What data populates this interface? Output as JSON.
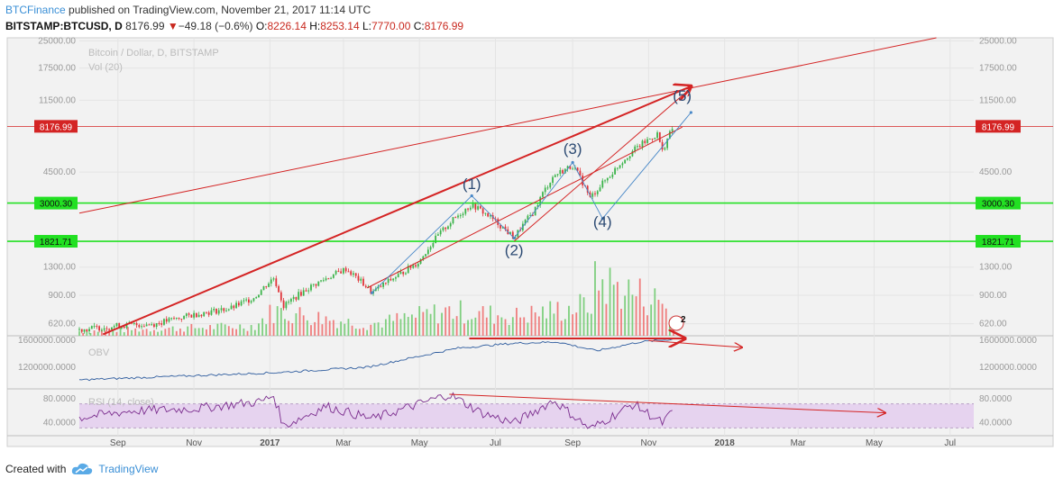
{
  "header": {
    "author": "BTCFinance",
    "published_text": " published on TradingView.com, November 21, 2017 11:14 UTC",
    "symbol": "BITSTAMP:BTCUSD, D",
    "last": "8176.99",
    "change_arrow": "▼",
    "change": "−49.18 (−0.6%)",
    "o_label": "O:",
    "o_value": "8226.14",
    "h_label": "H:",
    "h_value": "8253.14",
    "l_label": "L:",
    "l_value": "7770.00",
    "c_label": "C:",
    "c_value": "8176.99"
  },
  "footer": {
    "created_with": "Created with",
    "brand": "TradingView"
  },
  "colors": {
    "up": "#3cb44b",
    "down": "#e0343a",
    "trend": "#d42424",
    "support": "#22e022",
    "obv": "#2e5c9e",
    "rsi": "#7b2d8e",
    "rsi_band": "#e6d3ef",
    "wave": "#4a89c8"
  },
  "chart_data": {
    "type": "candlestick",
    "main": {
      "title": "Bitcoin / Dollar, D, BITSTAMP",
      "subtitle": "Vol (20)",
      "scale": "log",
      "ylim": [
        530,
        26000
      ],
      "xlim": [
        "2016-08-01",
        "2018-07-20"
      ],
      "y_tick_labels": [
        "25000.00",
        "17500.00",
        "11500.00",
        "4500.00",
        "1300.00",
        "900.00",
        "620.00"
      ],
      "price_levels": [
        {
          "label": "8176.99",
          "value": 8176.99,
          "color": "#d42424"
        },
        {
          "label": "3000.30",
          "value": 3000.3,
          "color": "#22e022"
        },
        {
          "label": "1821.71",
          "value": 1821.71,
          "color": "#22e022"
        }
      ],
      "price_path": [
        [
          "2016-08-01",
          575
        ],
        [
          "2016-09-01",
          605
        ],
        [
          "2016-10-01",
          620
        ],
        [
          "2016-11-01",
          700
        ],
        [
          "2016-12-01",
          760
        ],
        [
          "2016-12-20",
          880
        ],
        [
          "2017-01-04",
          1130
        ],
        [
          "2017-01-12",
          780
        ],
        [
          "2017-02-01",
          990
        ],
        [
          "2017-03-03",
          1270
        ],
        [
          "2017-03-24",
          930
        ],
        [
          "2017-04-15",
          1180
        ],
        [
          "2017-05-01",
          1400
        ],
        [
          "2017-05-25",
          2300
        ],
        [
          "2017-06-12",
          2950
        ],
        [
          "2017-06-25",
          2550
        ],
        [
          "2017-07-16",
          1900
        ],
        [
          "2017-08-01",
          2700
        ],
        [
          "2017-08-17",
          4300
        ],
        [
          "2017-09-01",
          4900
        ],
        [
          "2017-09-15",
          3200
        ],
        [
          "2017-10-01",
          4300
        ],
        [
          "2017-10-20",
          6000
        ],
        [
          "2017-11-08",
          7400
        ],
        [
          "2017-11-12",
          5900
        ],
        [
          "2017-11-21",
          8176.99
        ]
      ],
      "volume_path": [
        [
          "2016-08-01",
          0.08
        ],
        [
          "2016-12-20",
          0.18
        ],
        [
          "2017-01-04",
          0.45
        ],
        [
          "2017-03-20",
          0.2
        ],
        [
          "2017-05-25",
          0.45
        ],
        [
          "2017-07-16",
          0.35
        ],
        [
          "2017-09-15",
          0.55
        ],
        [
          "2017-09-20",
          1.0
        ],
        [
          "2017-11-12",
          0.6
        ],
        [
          "2017-11-21",
          0.3
        ]
      ],
      "wave_labels": [
        {
          "label": "(1)",
          "date": "2017-06-12",
          "price": 3600
        },
        {
          "label": "(2)",
          "date": "2017-07-16",
          "price": 1520
        },
        {
          "label": "(3)",
          "date": "2017-09-01",
          "price": 5700
        },
        {
          "label": "(4)",
          "date": "2017-09-25",
          "price": 2200
        },
        {
          "label": "(5)",
          "date": "2017-11-28",
          "price": 11400
        }
      ],
      "wave_path": [
        [
          "2017-03-24",
          930
        ],
        [
          "2017-06-12",
          3300
        ],
        [
          "2017-07-16",
          1900
        ],
        [
          "2017-09-01",
          5100
        ],
        [
          "2017-09-25",
          2450
        ],
        [
          "2017-12-05",
          9800
        ]
      ],
      "trend_lines": [
        {
          "from": [
            "2016-08-01",
            2630
          ],
          "to": [
            "2018-06-20",
            26000
          ],
          "width": 1,
          "arrow": false
        },
        {
          "from": [
            "2016-08-20",
            540
          ],
          "to": [
            "2017-12-05",
            13800
          ],
          "width": 2,
          "arrow": true
        },
        {
          "from": [
            "2017-03-20",
            990
          ],
          "to": [
            "2017-11-28",
            8100
          ],
          "width": 1,
          "arrow": false
        },
        {
          "from": [
            "2017-07-16",
            1821.71
          ],
          "to": [
            "2017-12-05",
            13500
          ],
          "width": 1,
          "arrow": true
        }
      ]
    },
    "obv": {
      "title": "OBV",
      "y_tick_labels": [
        "1600000.0000",
        "1200000.0000"
      ],
      "ylim": [
        900000,
        1650000
      ],
      "path": [
        [
          "2016-08-01",
          1005000
        ],
        [
          "2017-01-04",
          1110000
        ],
        [
          "2017-03-20",
          1190000
        ],
        [
          "2017-06-01",
          1470000
        ],
        [
          "2017-07-16",
          1540000
        ],
        [
          "2017-08-20",
          1560000
        ],
        [
          "2017-09-20",
          1430000
        ],
        [
          "2017-10-25",
          1560000
        ],
        [
          "2017-11-21",
          1600000
        ]
      ]
    },
    "rsi": {
      "title": "RSI (14, close)",
      "y_tick_labels": [
        "80.0000",
        "40.0000"
      ],
      "ylim": [
        20,
        95
      ],
      "band": [
        30,
        70
      ],
      "path": [
        [
          "2016-08-01",
          47
        ],
        [
          "2016-09-10",
          58
        ],
        [
          "2016-11-01",
          62
        ],
        [
          "2016-12-25",
          74
        ],
        [
          "2017-01-04",
          84
        ],
        [
          "2017-01-12",
          33
        ],
        [
          "2017-02-15",
          66
        ],
        [
          "2017-03-24",
          45
        ],
        [
          "2017-05-25",
          86
        ],
        [
          "2017-06-20",
          55
        ],
        [
          "2017-07-16",
          38
        ],
        [
          "2017-08-17",
          76
        ],
        [
          "2017-09-15",
          28
        ],
        [
          "2017-10-20",
          70
        ],
        [
          "2017-11-12",
          38
        ],
        [
          "2017-11-21",
          58
        ]
      ]
    },
    "x_tick_labels": [
      {
        "label": "Sep",
        "date": "2016-09-01",
        "bold": false
      },
      {
        "label": "Nov",
        "date": "2016-11-01",
        "bold": false
      },
      {
        "label": "2017",
        "date": "2017-01-01",
        "bold": true
      },
      {
        "label": "Mar",
        "date": "2017-03-01",
        "bold": false
      },
      {
        "label": "May",
        "date": "2017-05-01",
        "bold": false
      },
      {
        "label": "Jul",
        "date": "2017-07-01",
        "bold": false
      },
      {
        "label": "Sep",
        "date": "2017-09-01",
        "bold": false
      },
      {
        "label": "Nov",
        "date": "2017-11-01",
        "bold": false
      },
      {
        "label": "2018",
        "date": "2018-01-01",
        "bold": true
      },
      {
        "label": "Mar",
        "date": "2018-03-01",
        "bold": false
      },
      {
        "label": "May",
        "date": "2018-05-01",
        "bold": false
      },
      {
        "label": "Jul",
        "date": "2018-07-01",
        "bold": false
      }
    ],
    "flag_badge": "2"
  }
}
